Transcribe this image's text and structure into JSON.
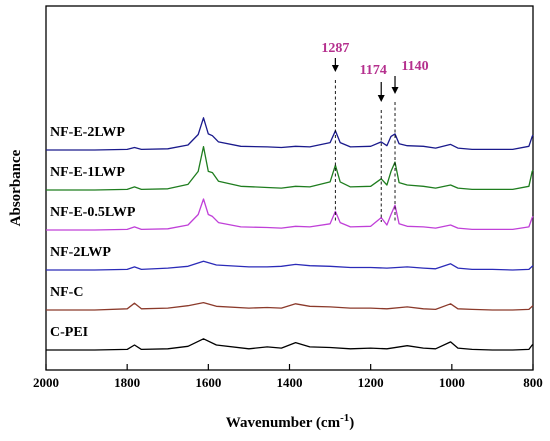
{
  "chart_data": {
    "type": "line",
    "xlabel": "Wavenumber (cm",
    "xlabel_sup": "-1",
    "xlabel_close": ")",
    "ylabel": "Absorbance",
    "xlim": [
      2000,
      800
    ],
    "x_reversed": true,
    "x_ticks": [
      "2000",
      "1800",
      "1600",
      "1400",
      "1200",
      "1000",
      "800"
    ],
    "x_tick_values": [
      2000,
      1800,
      1600,
      1400,
      1200,
      1000,
      800
    ],
    "y_ticks": false,
    "grid": false,
    "series": [
      {
        "name": "C-PEI",
        "color": "#000000",
        "offset": 0,
        "points": [
          [
            2000,
            0.0
          ],
          [
            1880,
            0.0
          ],
          [
            1800,
            0.1
          ],
          [
            1782,
            0.8
          ],
          [
            1765,
            0.1
          ],
          [
            1700,
            0.2
          ],
          [
            1650,
            0.6
          ],
          [
            1612,
            1.8
          ],
          [
            1580,
            0.8
          ],
          [
            1500,
            0.2
          ],
          [
            1455,
            0.5
          ],
          [
            1420,
            0.3
          ],
          [
            1385,
            1.2
          ],
          [
            1350,
            0.5
          ],
          [
            1300,
            0.4
          ],
          [
            1250,
            0.2
          ],
          [
            1200,
            0.3
          ],
          [
            1160,
            0.2
          ],
          [
            1110,
            0.7
          ],
          [
            1070,
            0.3
          ],
          [
            1040,
            0.2
          ],
          [
            1003,
            1.3
          ],
          [
            985,
            0.3
          ],
          [
            950,
            0.1
          ],
          [
            900,
            0.0
          ],
          [
            850,
            0.0
          ],
          [
            810,
            0.1
          ],
          [
            802,
            0.8
          ],
          [
            800,
            0.9
          ]
        ]
      },
      {
        "name": "NF-C",
        "color": "#8b3a2b",
        "offset": 1,
        "points": [
          [
            2000,
            0.0
          ],
          [
            1880,
            0.0
          ],
          [
            1800,
            0.2
          ],
          [
            1782,
            1.1
          ],
          [
            1765,
            0.2
          ],
          [
            1700,
            0.3
          ],
          [
            1650,
            0.7
          ],
          [
            1612,
            1.2
          ],
          [
            1580,
            0.6
          ],
          [
            1500,
            0.3
          ],
          [
            1455,
            0.4
          ],
          [
            1420,
            0.3
          ],
          [
            1385,
            1.0
          ],
          [
            1350,
            0.6
          ],
          [
            1300,
            0.5
          ],
          [
            1250,
            0.3
          ],
          [
            1200,
            0.3
          ],
          [
            1160,
            0.2
          ],
          [
            1110,
            0.5
          ],
          [
            1070,
            0.2
          ],
          [
            1040,
            0.1
          ],
          [
            1003,
            1.0
          ],
          [
            985,
            0.2
          ],
          [
            950,
            0.1
          ],
          [
            900,
            0.0
          ],
          [
            850,
            0.0
          ],
          [
            810,
            0.1
          ],
          [
            802,
            0.6
          ],
          [
            800,
            0.7
          ]
        ]
      },
      {
        "name": "NF-2LWP",
        "color": "#2b2bb8",
        "offset": 2,
        "points": [
          [
            2000,
            0.0
          ],
          [
            1880,
            0.0
          ],
          [
            1800,
            0.1
          ],
          [
            1782,
            0.5
          ],
          [
            1765,
            0.1
          ],
          [
            1700,
            0.3
          ],
          [
            1650,
            0.6
          ],
          [
            1612,
            1.4
          ],
          [
            1580,
            0.8
          ],
          [
            1500,
            0.5
          ],
          [
            1455,
            0.5
          ],
          [
            1420,
            0.6
          ],
          [
            1385,
            0.9
          ],
          [
            1350,
            0.7
          ],
          [
            1300,
            0.6
          ],
          [
            1250,
            0.4
          ],
          [
            1200,
            0.4
          ],
          [
            1160,
            0.3
          ],
          [
            1110,
            0.5
          ],
          [
            1070,
            0.3
          ],
          [
            1040,
            0.2
          ],
          [
            1003,
            1.0
          ],
          [
            985,
            0.3
          ],
          [
            950,
            0.1
          ],
          [
            900,
            0.1
          ],
          [
            850,
            0.0
          ],
          [
            810,
            0.1
          ],
          [
            802,
            0.6
          ],
          [
            800,
            0.7
          ]
        ]
      },
      {
        "name": "NF-E-0.5LWP",
        "color": "#c040d8",
        "offset": 3,
        "points": [
          [
            2000,
            0.0
          ],
          [
            1880,
            0.0
          ],
          [
            1800,
            0.1
          ],
          [
            1782,
            0.5
          ],
          [
            1765,
            0.1
          ],
          [
            1700,
            0.2
          ],
          [
            1650,
            0.8
          ],
          [
            1625,
            2.5
          ],
          [
            1612,
            5.0
          ],
          [
            1600,
            2.5
          ],
          [
            1590,
            2.2
          ],
          [
            1575,
            1.2
          ],
          [
            1520,
            0.5
          ],
          [
            1455,
            0.4
          ],
          [
            1420,
            0.3
          ],
          [
            1385,
            0.6
          ],
          [
            1350,
            0.5
          ],
          [
            1300,
            1.0
          ],
          [
            1287,
            3.0
          ],
          [
            1275,
            1.2
          ],
          [
            1250,
            0.5
          ],
          [
            1200,
            0.6
          ],
          [
            1174,
            2.0
          ],
          [
            1160,
            0.8
          ],
          [
            1150,
            2.5
          ],
          [
            1140,
            4.0
          ],
          [
            1130,
            1.0
          ],
          [
            1110,
            0.6
          ],
          [
            1070,
            0.5
          ],
          [
            1040,
            0.3
          ],
          [
            1003,
            0.8
          ],
          [
            985,
            0.3
          ],
          [
            950,
            0.1
          ],
          [
            900,
            0.1
          ],
          [
            850,
            0.1
          ],
          [
            810,
            0.5
          ],
          [
            802,
            2.0
          ],
          [
            800,
            2.2
          ]
        ]
      },
      {
        "name": "NF-E-1LWP",
        "color": "#1f7d1f",
        "offset": 4,
        "points": [
          [
            2000,
            0.0
          ],
          [
            1880,
            0.0
          ],
          [
            1800,
            0.1
          ],
          [
            1782,
            0.5
          ],
          [
            1765,
            0.1
          ],
          [
            1700,
            0.2
          ],
          [
            1650,
            0.9
          ],
          [
            1625,
            3.0
          ],
          [
            1612,
            7.0
          ],
          [
            1600,
            3.0
          ],
          [
            1590,
            2.8
          ],
          [
            1575,
            1.4
          ],
          [
            1520,
            0.6
          ],
          [
            1455,
            0.4
          ],
          [
            1420,
            0.3
          ],
          [
            1385,
            0.6
          ],
          [
            1350,
            0.5
          ],
          [
            1300,
            1.3
          ],
          [
            1287,
            4.0
          ],
          [
            1275,
            1.3
          ],
          [
            1250,
            0.5
          ],
          [
            1200,
            0.6
          ],
          [
            1174,
            1.8
          ],
          [
            1160,
            0.8
          ],
          [
            1150,
            3.0
          ],
          [
            1140,
            4.5
          ],
          [
            1130,
            1.2
          ],
          [
            1110,
            0.8
          ],
          [
            1070,
            0.6
          ],
          [
            1040,
            0.3
          ],
          [
            1003,
            0.8
          ],
          [
            985,
            0.3
          ],
          [
            950,
            0.1
          ],
          [
            900,
            0.1
          ],
          [
            850,
            0.1
          ],
          [
            810,
            0.6
          ],
          [
            802,
            3.0
          ],
          [
            800,
            3.2
          ]
        ]
      },
      {
        "name": "NF-E-2LWP",
        "color": "#1a1a8c",
        "offset": 5,
        "points": [
          [
            2000,
            0.0
          ],
          [
            1880,
            0.0
          ],
          [
            1800,
            0.1
          ],
          [
            1782,
            0.4
          ],
          [
            1765,
            0.1
          ],
          [
            1700,
            0.2
          ],
          [
            1650,
            0.8
          ],
          [
            1625,
            2.5
          ],
          [
            1612,
            5.2
          ],
          [
            1600,
            2.6
          ],
          [
            1590,
            2.3
          ],
          [
            1575,
            1.3
          ],
          [
            1520,
            0.6
          ],
          [
            1455,
            0.5
          ],
          [
            1420,
            0.4
          ],
          [
            1385,
            0.6
          ],
          [
            1350,
            0.5
          ],
          [
            1300,
            1.2
          ],
          [
            1287,
            3.1
          ],
          [
            1275,
            1.2
          ],
          [
            1250,
            0.5
          ],
          [
            1200,
            0.6
          ],
          [
            1174,
            1.3
          ],
          [
            1160,
            0.7
          ],
          [
            1150,
            2.2
          ],
          [
            1140,
            2.6
          ],
          [
            1130,
            1.0
          ],
          [
            1110,
            0.7
          ],
          [
            1070,
            0.6
          ],
          [
            1040,
            0.3
          ],
          [
            1003,
            0.9
          ],
          [
            985,
            0.3
          ],
          [
            950,
            0.1
          ],
          [
            900,
            0.1
          ],
          [
            850,
            0.1
          ],
          [
            810,
            0.6
          ],
          [
            802,
            2.2
          ],
          [
            800,
            2.4
          ]
        ]
      }
    ],
    "peak_annotations": [
      {
        "label": "1287",
        "x": 1287
      },
      {
        "label": "1174",
        "x": 1174
      },
      {
        "label": "1140",
        "x": 1140
      }
    ],
    "peak_color": "#b5308e"
  }
}
